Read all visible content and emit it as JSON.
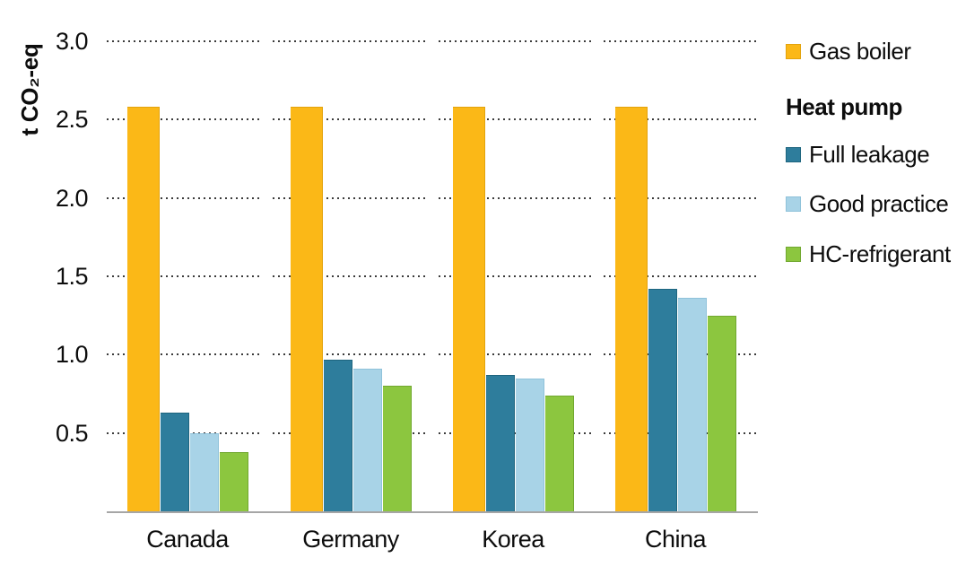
{
  "chart_data": {
    "type": "bar",
    "title": "",
    "ylabel": "t CO₂-eq",
    "xlabel": "",
    "categories": [
      "Canada",
      "Germany",
      "Korea",
      "China"
    ],
    "series": [
      {
        "name": "Gas boiler",
        "color": "#FBB817",
        "border_color": "#E3A30C",
        "values": [
          2.58,
          2.58,
          2.58,
          2.58
        ]
      },
      {
        "name": "Full leakage",
        "color": "#2E7D9C",
        "border_color": "#1E657F",
        "values": [
          0.63,
          0.97,
          0.87,
          1.42
        ]
      },
      {
        "name": "Good practice",
        "color": "#A8D3E7",
        "border_color": "#8FC2DA",
        "values": [
          0.5,
          0.91,
          0.85,
          1.36
        ]
      },
      {
        "name": "HC-refrigerant",
        "color": "#8CC63F",
        "border_color": "#71A830",
        "values": [
          0.38,
          0.8,
          0.74,
          1.25
        ]
      }
    ],
    "ylim": [
      0,
      3.0
    ],
    "yticks": [
      0.5,
      1.0,
      1.5,
      2.0,
      2.5,
      3.0
    ],
    "ytick_labels": [
      "0.5",
      "1.0",
      "1.5",
      "2.0",
      "2.5",
      "3.0"
    ],
    "grid": "horizontal-dotted-segmented",
    "legend_position": "right"
  },
  "legend": {
    "items": [
      {
        "label": "Gas boiler",
        "type": "series",
        "color": "#FBB817",
        "border": "#E3A30C"
      },
      {
        "label": "Heat pump",
        "type": "header"
      },
      {
        "label": "Full leakage",
        "type": "series",
        "color": "#2E7D9C",
        "border": "#1E657F"
      },
      {
        "label": "Good practice",
        "type": "series",
        "color": "#A8D3E7",
        "border": "#8FC2DA"
      },
      {
        "label": "HC-refrigerant",
        "type": "series",
        "color": "#8CC63F",
        "border": "#71A830"
      }
    ]
  },
  "colors": {
    "grid_dots": "#3b3b3b",
    "axis_line": "#a6a6a6",
    "text": "#0d0d0d",
    "background": "#ffffff"
  }
}
